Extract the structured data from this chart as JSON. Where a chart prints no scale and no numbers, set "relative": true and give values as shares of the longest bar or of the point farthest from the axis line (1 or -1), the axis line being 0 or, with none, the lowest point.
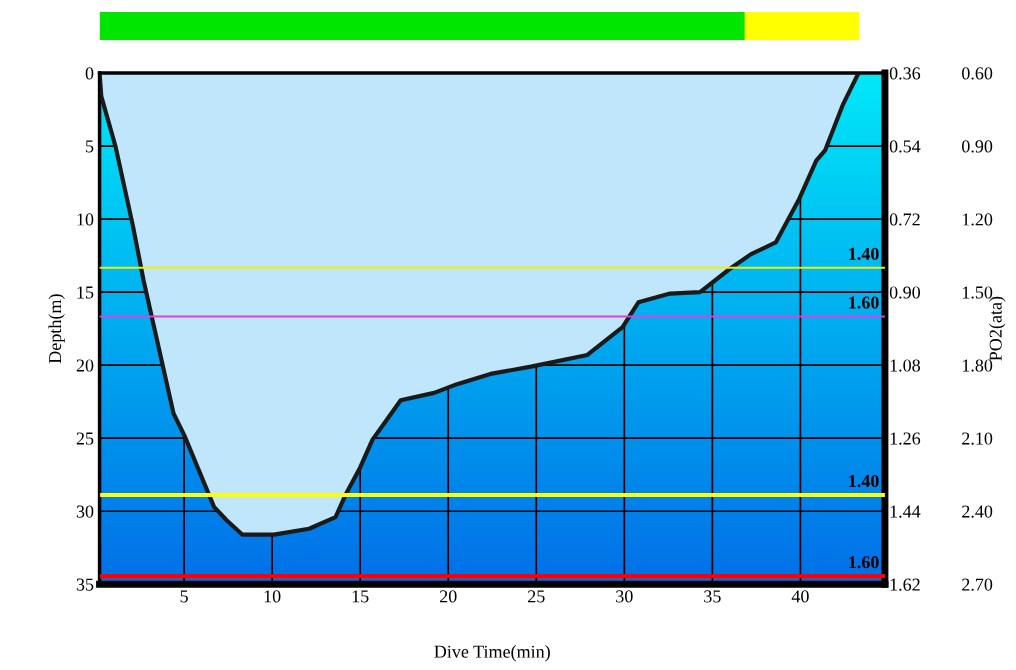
{
  "chart_data": [
    {
      "type": "bar",
      "orientation": "horizontal",
      "stacked": true,
      "categories": [
        null
      ],
      "series": [
        {
          "color": "#00e600",
          "values": [
            0.849
          ]
        },
        {
          "color": "#ffff00",
          "values": [
            0.151
          ]
        }
      ],
      "relative": true
    },
    {
      "type": "area",
      "xlabel": "Dive Time(min)",
      "ylabel": "Depth(m)",
      "y2label": "PO2(ata)",
      "series": [
        {
          "color": "#1a1a1a",
          "x": [
            0.2,
            0.3,
            1.1,
            2.1,
            2.7,
            4.4,
            5.05,
            6.7,
            7.4,
            8.3,
            10.1,
            12.1,
            13.6,
            14.2,
            15.0,
            15.7,
            16.3,
            17.3,
            19.2,
            20.5,
            22.4,
            24.7,
            27.9,
            29.9,
            30.8,
            32.6,
            34.3,
            36.0,
            37.2,
            38.6,
            39.9,
            40.9,
            41.4,
            42.4,
            43.3
          ],
          "values": [
            0,
            1.6,
            5.0,
            10.5,
            14.2,
            23.3,
            24.9,
            29.7,
            30.6,
            31.6,
            31.6,
            31.2,
            30.4,
            28.8,
            27.0,
            25.1,
            24.1,
            22.4,
            21.9,
            21.3,
            20.6,
            20.1,
            19.3,
            17.4,
            15.7,
            15.1,
            15.0,
            13.4,
            12.4,
            11.6,
            8.7,
            6.0,
            5.3,
            2.2,
            0
          ]
        }
      ],
      "xlim": [
        0.2,
        44.8
      ],
      "xticks": [
        5,
        10,
        15,
        20,
        25,
        30,
        35,
        40
      ],
      "ylim": [
        35,
        0
      ],
      "yticks": [
        0,
        5,
        10,
        15,
        20,
        25,
        30,
        35
      ],
      "y2lim": [
        1.62,
        0.36
      ],
      "y2ticks": [
        {
          "value": 0.36,
          "label": "0.36"
        },
        {
          "value": 0.54,
          "label": "0.54"
        },
        {
          "value": 0.72,
          "label": "0.72"
        },
        {
          "value": 0.9,
          "label": "0.90"
        },
        {
          "value": 1.08,
          "label": "1.08"
        },
        {
          "value": 1.26,
          "label": "1.26"
        },
        {
          "value": 1.44,
          "label": "1.44"
        },
        {
          "value": 1.62,
          "label": "1.62"
        }
      ],
      "y3lim": [
        2.7,
        0.6
      ],
      "y3ticks": [
        {
          "value": 0.6,
          "label": "0.60"
        },
        {
          "value": 0.9,
          "label": "0.90"
        },
        {
          "value": 1.2,
          "label": "1.20"
        },
        {
          "value": 1.5,
          "label": "1.50"
        },
        {
          "value": 1.8,
          "label": "1.80"
        },
        {
          "value": 2.1,
          "label": "2.10"
        },
        {
          "value": 2.4,
          "label": "2.40"
        },
        {
          "value": 2.7,
          "label": "2.70"
        }
      ],
      "ref_lines": [
        {
          "axis": "y3",
          "value": 1.4,
          "label": "1.40",
          "color": "#f0f000"
        },
        {
          "axis": "y3",
          "value": 1.6,
          "label": "1.60",
          "color": "#e040e0"
        },
        {
          "axis": "y2",
          "value": 1.4,
          "label": "1.40",
          "color": "#ffff00"
        },
        {
          "axis": "y2",
          "value": 1.6,
          "label": "1.60",
          "color": "#ff0000"
        }
      ],
      "grid": true
    }
  ]
}
